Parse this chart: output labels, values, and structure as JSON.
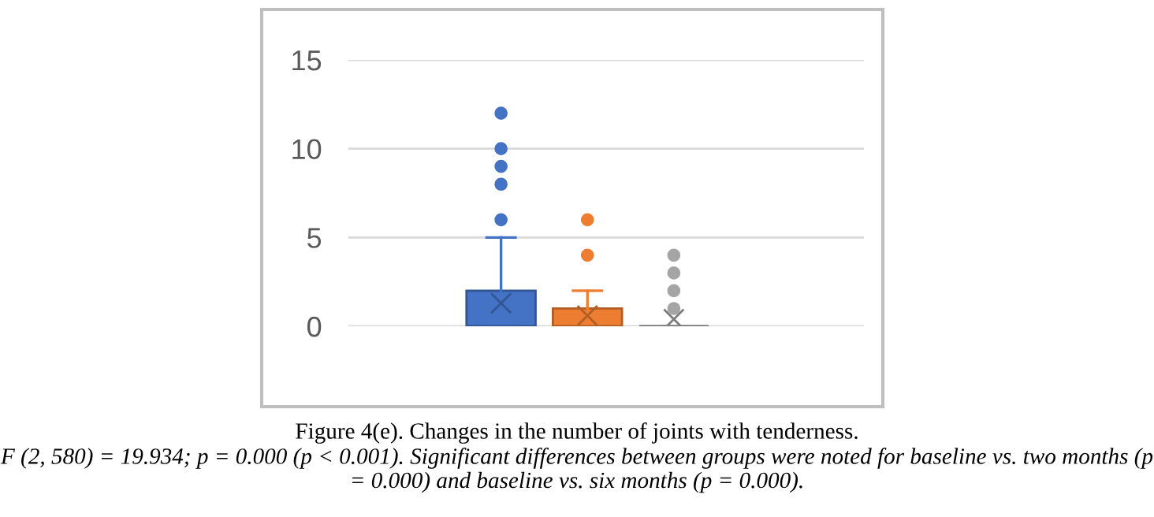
{
  "chart_data": {
    "type": "box",
    "categories": [
      null
    ],
    "series": [
      {
        "color": "#4472c4",
        "boxes": [
          {
            "low": 0,
            "q1": 0,
            "median": 0,
            "q3": 2,
            "high": 5,
            "mean": 1.3,
            "outliers": [
              6,
              8,
              9,
              10,
              12
            ]
          }
        ]
      },
      {
        "color": "#ed7d31",
        "boxes": [
          {
            "low": 0,
            "q1": 0,
            "median": 0,
            "q3": 1,
            "high": 2,
            "mean": 0.6,
            "outliers": [
              4,
              6
            ]
          }
        ]
      },
      {
        "color": "#a5a5a5",
        "boxes": [
          {
            "low": 0,
            "q1": 0,
            "median": 0,
            "q3": 0,
            "high": 0,
            "mean": 0.4,
            "outliers": [
              1,
              2,
              3,
              4
            ]
          }
        ]
      }
    ],
    "ylim": [
      0,
      15
    ],
    "yticks": [
      0,
      5,
      10,
      15
    ],
    "grid": "y",
    "annotations": [
      "Figure 4(e). Changes in the number of joints with tenderness.",
      "F (2, 580) = 19.934; p = 0.000 (p < 0.001). Significant differences between groups were noted for baseline vs. two months (p = 0.000) and baseline vs. six months (p = 0.000)."
    ]
  }
}
